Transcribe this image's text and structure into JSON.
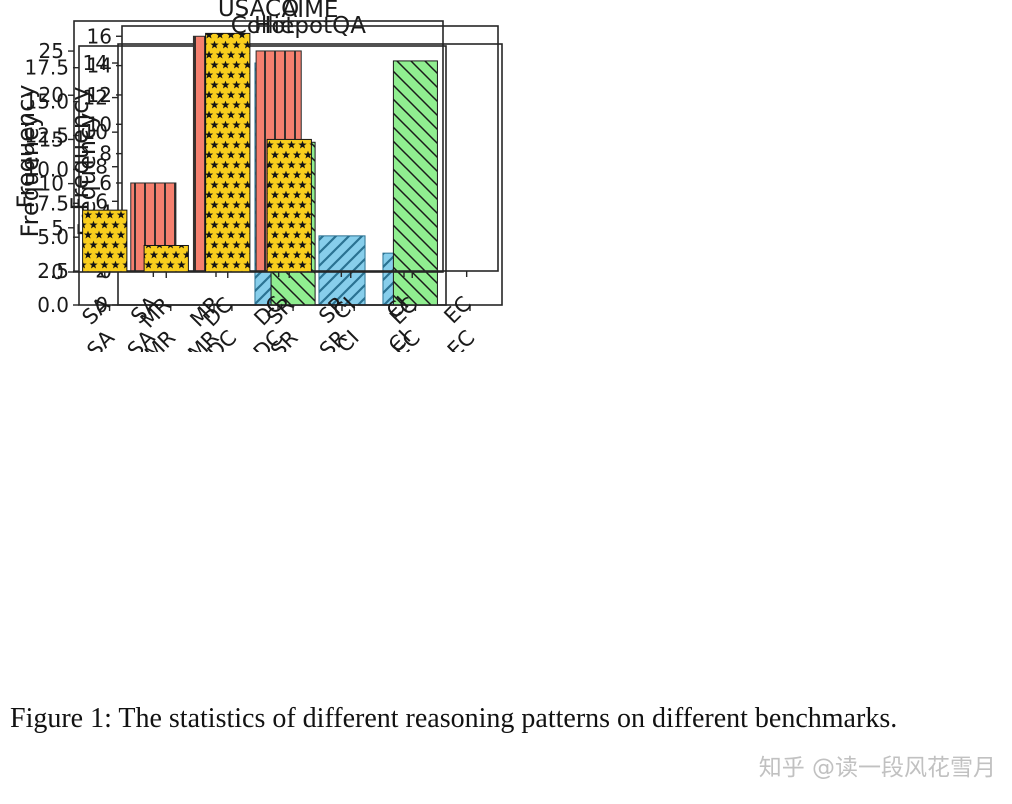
{
  "figure": {
    "caption": "Figure 1: The statistics of different reasoning patterns on different benchmarks.",
    "watermark": "知乎 @读一段风花雪月"
  },
  "chart_data": [
    {
      "type": "bar",
      "title": "HotpotQA",
      "ylabel": "Frequency",
      "xlabel": "",
      "categories": [
        "SA",
        "MR",
        "DC",
        "SR",
        "CI",
        "EC"
      ],
      "values": [
        0,
        0,
        14,
        4,
        3,
        0
      ],
      "yticks": [
        0,
        2,
        4,
        6,
        8,
        10,
        12,
        14
      ],
      "ytick_labels": [
        "0",
        "2",
        "4",
        "6",
        "8",
        "10",
        "12",
        "14"
      ],
      "ylim": [
        0,
        15.1
      ],
      "bar_color": "#87CEEB",
      "hatch": "/",
      "hatch_color": "#2A7292",
      "grid": false,
      "legend": null
    },
    {
      "type": "bar",
      "title": "Collie",
      "ylabel": "Frequency",
      "xlabel": "",
      "categories": [
        "SA",
        "MR",
        "DC",
        "SR",
        "CI",
        "EC"
      ],
      "values": [
        0,
        0,
        0,
        12,
        0,
        18
      ],
      "yticks": [
        0,
        2.5,
        5,
        7.5,
        10,
        12.5,
        15,
        17.5
      ],
      "ytick_labels": [
        "0.0",
        "2.5",
        "5.0",
        "7.5",
        "10.0",
        "12.5",
        "15.0",
        "17.5"
      ],
      "ylim": [
        0,
        19.1
      ],
      "bar_color": "#90EE90",
      "hatch": "\\",
      "hatch_color": "#1A1A1A",
      "grid": false,
      "legend": null
    },
    {
      "type": "bar",
      "title": "AIME",
      "ylabel": "Frequency",
      "xlabel": "",
      "categories": [
        "SA",
        "MR",
        "DC",
        "SR",
        "CI",
        "EC"
      ],
      "values": [
        6,
        16,
        15,
        0,
        0,
        0
      ],
      "yticks": [
        0,
        2,
        4,
        6,
        8,
        10,
        12,
        14,
        16
      ],
      "ytick_labels": [
        "0",
        "2",
        "4",
        "6",
        "8",
        "10",
        "12",
        "14",
        "16"
      ],
      "ylim": [
        0,
        16.7
      ],
      "bar_color": "#F5806F",
      "hatch": "|",
      "hatch_color": "#2B2B2B",
      "grid": false,
      "legend": null
    },
    {
      "type": "bar",
      "title": "USACO",
      "ylabel": "Frequency",
      "xlabel": "",
      "categories": [
        "SA",
        "MR",
        "DC",
        "SR",
        "CI",
        "EC"
      ],
      "values": [
        7,
        3,
        27,
        15,
        0,
        0
      ],
      "yticks": [
        0,
        5,
        10,
        15,
        20,
        25
      ],
      "ytick_labels": [
        "0",
        "5",
        "10",
        "15",
        "20",
        "25"
      ],
      "ylim": [
        0,
        28.4
      ],
      "bar_color": "#F9CE1D",
      "hatch": "*",
      "hatch_color": "#141414",
      "grid": false,
      "legend": null
    }
  ]
}
